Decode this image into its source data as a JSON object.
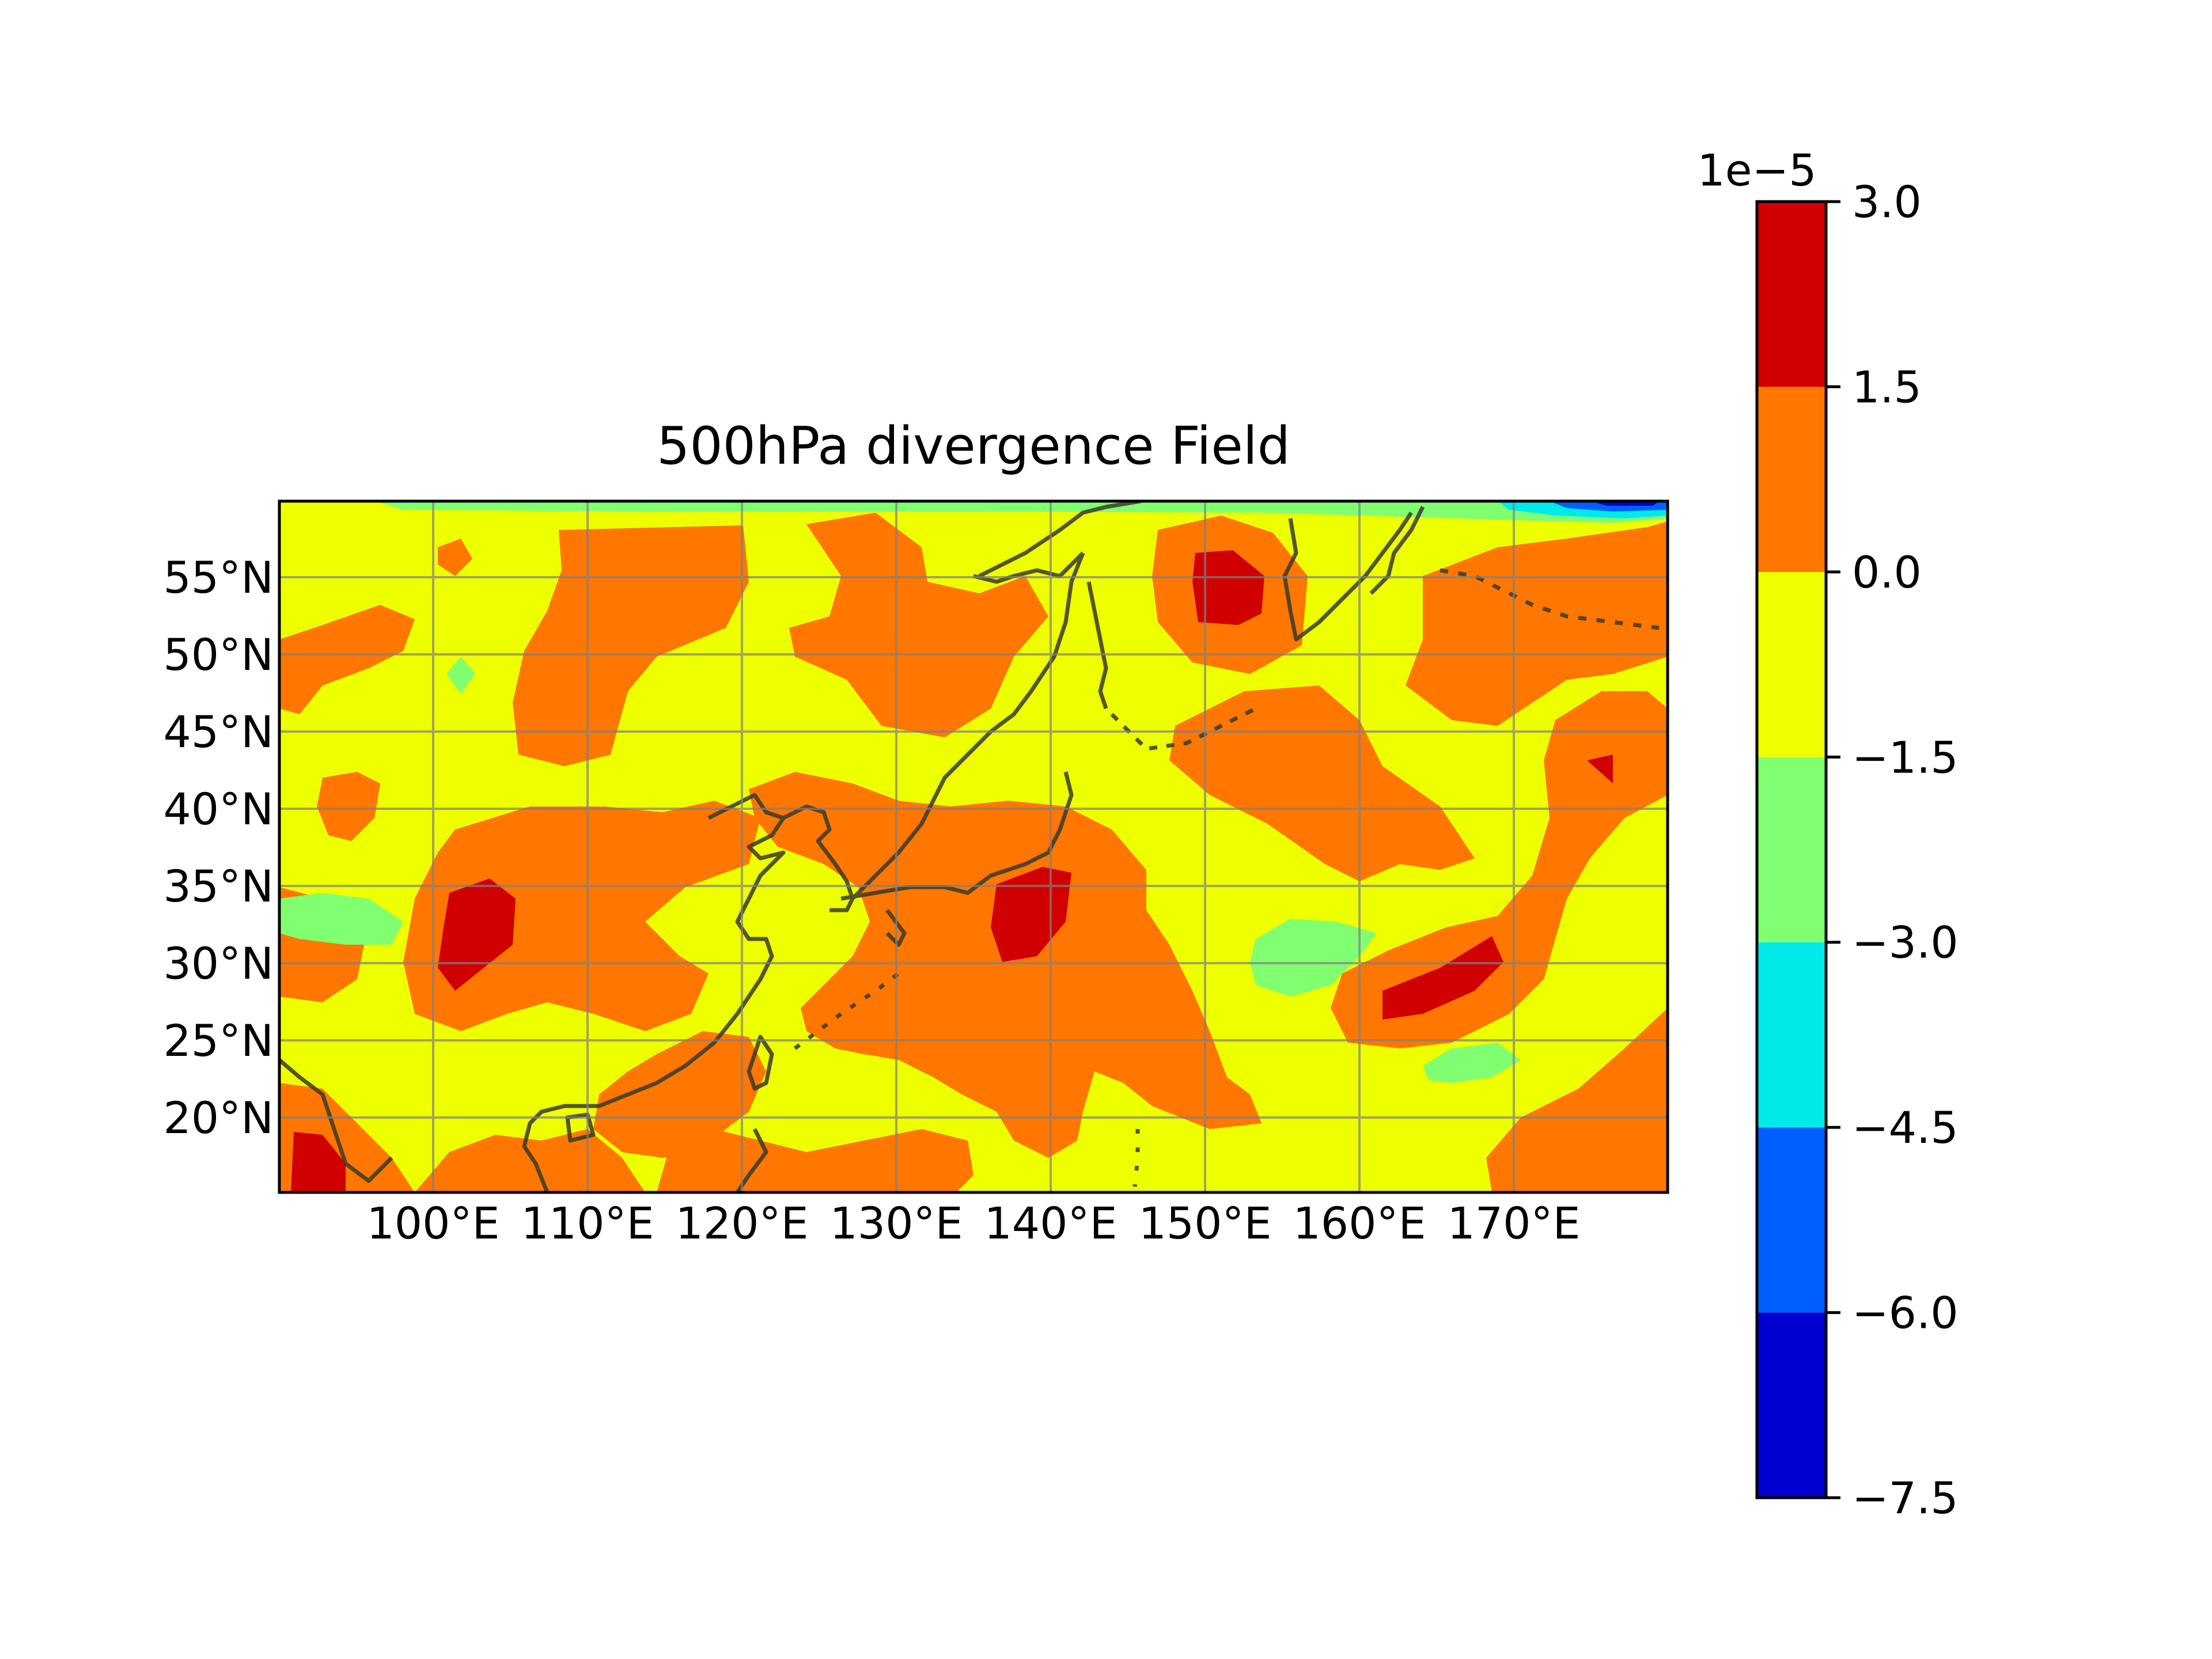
{
  "chart_data": {
    "type": "contour_map",
    "title": "500hPa divergence Field",
    "xlabel": "",
    "ylabel": "",
    "lon_range": [
      91,
      181
    ],
    "lat_range": [
      15.5,
      60.5
    ],
    "x_ticks": [
      "100°E",
      "110°E",
      "120°E",
      "130°E",
      "140°E",
      "150°E",
      "160°E",
      "170°E"
    ],
    "x_tick_values": [
      100,
      110,
      120,
      130,
      140,
      150,
      160,
      170
    ],
    "y_ticks": [
      "20°N",
      "25°N",
      "30°N",
      "35°N",
      "40°N",
      "45°N",
      "50°N",
      "55°N"
    ],
    "y_tick_values": [
      20,
      25,
      30,
      35,
      40,
      45,
      50,
      55
    ],
    "grid": true,
    "colorbar": {
      "scale_label": "1e−5",
      "tick_labels": [
        "−7.5",
        "−6.0",
        "−4.5",
        "−3.0",
        "−1.5",
        "0.0",
        "1.5",
        "3.0"
      ],
      "levels": [
        -7.5,
        -6.0,
        -4.5,
        -3.0,
        -1.5,
        0.0,
        1.5,
        3.0
      ],
      "colors": [
        "#0000d0",
        "#0060ff",
        "#00eaea",
        "#80ff70",
        "#eeff00",
        "#ff7700",
        "#d00000"
      ]
    },
    "features": [
      {
        "name": "divergence-max-sea-of-okhotsk",
        "lon": 152,
        "lat": 54.5,
        "value_class": "1.5 to 3.0"
      },
      {
        "name": "divergence-max-central-china",
        "lon": 103,
        "lat": 32,
        "value_class": "1.5 to 3.0"
      },
      {
        "name": "divergence-max-east-of-japan",
        "lon": 140,
        "lat": 33.5,
        "value_class": "1.5 to 3.0"
      },
      {
        "name": "divergence-max-north-pacific",
        "lon": 166,
        "lat": 28.5,
        "value_class": "1.5 to 3.0"
      },
      {
        "name": "divergence-max-north-pacific-small",
        "lon": 175,
        "lat": 42,
        "value_class": "1.5 to 3.0"
      },
      {
        "name": "divergence-max-indochina",
        "lon": 94,
        "lat": 17.5,
        "value_class": "1.5 to 3.0"
      },
      {
        "name": "convergence-min-northern-edge",
        "lon": 176,
        "lat": 60,
        "value_class": "−7.5 to −4.5"
      }
    ]
  },
  "colors": {
    "gridline": "#808080",
    "coastline": "#3a3a2a",
    "frame": "#000000"
  }
}
